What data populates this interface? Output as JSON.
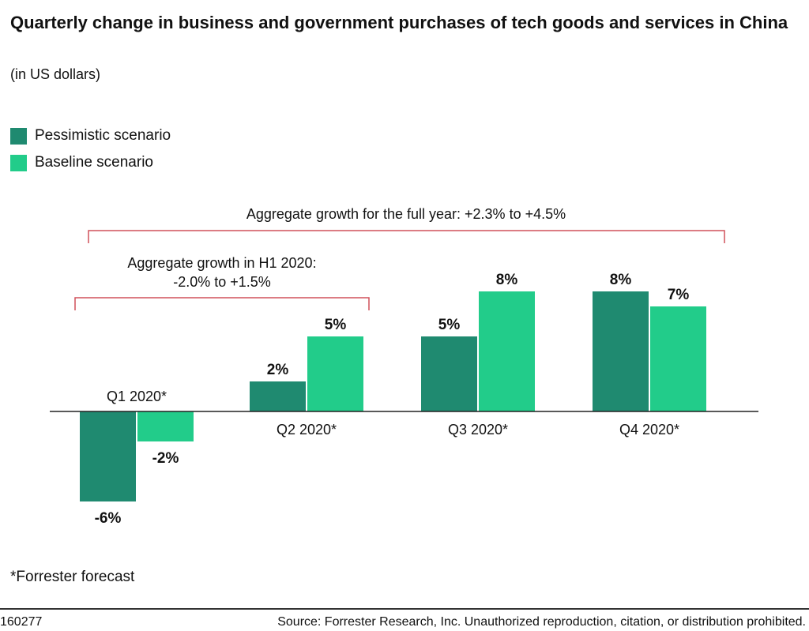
{
  "colors": {
    "pessimistic": "#1f8a70",
    "baseline": "#22cc8a",
    "bracket": "#d0505a"
  },
  "header": {
    "title": "Quarterly change in business and government purchases of tech goods and services in China",
    "subtitle": "(in US dollars)"
  },
  "chart_data": {
    "type": "bar",
    "title": "Quarterly change in business and government purchases of tech goods and services in China",
    "subtitle": "(in US dollars)",
    "categories": [
      "Q1 2020*",
      "Q2 2020*",
      "Q3 2020*",
      "Q4 2020*"
    ],
    "series": [
      {
        "name": "Pessimistic scenario",
        "values": [
          -6,
          2,
          5,
          8
        ],
        "labels": [
          "-6%",
          "2%",
          "5%",
          "8%"
        ]
      },
      {
        "name": "Baseline scenario",
        "values": [
          -2,
          5,
          8,
          7
        ],
        "labels": [
          "-2%",
          "5%",
          "8%",
          "7%"
        ]
      }
    ],
    "unit": "%",
    "legend_placement": "top-left",
    "grid": false,
    "annotations": [
      {
        "text": [
          "Aggregate growth for the full year: +2.3% to +4.5%"
        ],
        "spans": [
          "Q1 2020*",
          "Q4 2020*"
        ]
      },
      {
        "text": [
          "Aggregate growth in H1 2020:",
          "-2.0% to +1.5%"
        ],
        "spans": [
          "Q1 2020*",
          "Q2 2020*"
        ]
      }
    ]
  },
  "footer": {
    "note": "*Forrester forecast",
    "id": "160277",
    "source": "Source: Forrester Research, Inc. Unauthorized reproduction, citation, or distribution prohibited."
  }
}
